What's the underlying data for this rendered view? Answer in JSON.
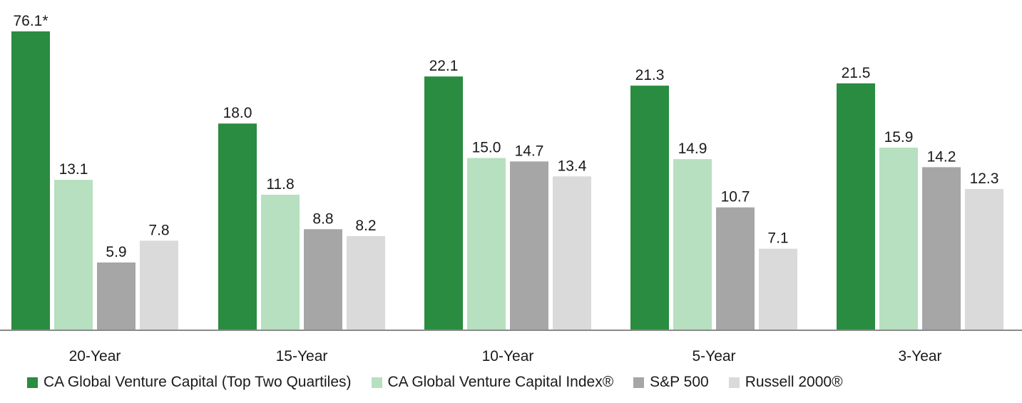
{
  "chart_data": {
    "type": "bar",
    "categories": [
      "20-Year",
      "15-Year",
      "10-Year",
      "5-Year",
      "3-Year"
    ],
    "series": [
      {
        "name": "CA Global Venture Capital (Top Two Quartiles)",
        "color": "#2a8c40",
        "values": [
          76.1,
          18.0,
          22.1,
          21.3,
          21.5
        ],
        "labels": [
          "76.1*",
          "18.0",
          "22.1",
          "21.3",
          "21.5"
        ]
      },
      {
        "name": "CA Global Venture Capital Index®",
        "color": "#b6e0bf",
        "values": [
          13.1,
          11.8,
          15.0,
          14.9,
          15.9
        ],
        "labels": [
          "13.1",
          "11.8",
          "15.0",
          "14.9",
          "15.9"
        ]
      },
      {
        "name": "S&P 500",
        "color": "#a6a6a6",
        "values": [
          5.9,
          8.8,
          14.7,
          10.7,
          14.2
        ],
        "labels": [
          "5.9",
          "8.8",
          "14.7",
          "10.7",
          "14.2"
        ]
      },
      {
        "name": "Russell 2000®",
        "color": "#dadada",
        "values": [
          7.8,
          8.2,
          13.4,
          7.1,
          12.3
        ],
        "labels": [
          "7.8",
          "8.2",
          "13.4",
          "7.1",
          "12.3"
        ]
      }
    ],
    "title": "",
    "xlabel": "",
    "ylabel": "",
    "ylim": [
      0,
      23.5
    ],
    "axis_break": "first bar truncated (asterisk)",
    "grid": false,
    "legend_position": "bottom"
  }
}
